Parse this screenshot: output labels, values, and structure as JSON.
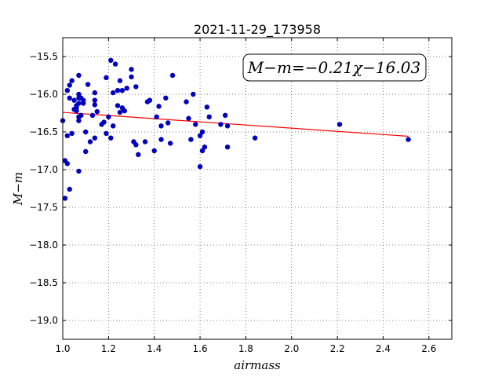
{
  "chart_data": {
    "type": "scatter",
    "title": "2021-11-29_173958",
    "xlabel": "airmass",
    "ylabel": "M−m",
    "xlim": [
      1.0,
      2.7
    ],
    "ylim": [
      -19.25,
      -15.25
    ],
    "y_inverted": true,
    "grid": true,
    "xticks": [
      1.0,
      1.2,
      1.4,
      1.6,
      1.8,
      2.0,
      2.2,
      2.4,
      2.6
    ],
    "xtick_labels": [
      "1.0",
      "1.2",
      "1.4",
      "1.6",
      "1.8",
      "2.0",
      "2.2",
      "2.4",
      "2.6"
    ],
    "yticks": [
      -15.5,
      -16.0,
      -16.5,
      -17.0,
      -17.5,
      -18.0,
      -18.5,
      -19.0
    ],
    "ytick_labels": [
      "−15.5",
      "−16.0",
      "−16.5",
      "−17.0",
      "−17.5",
      "−18.0",
      "−18.5",
      "−19.0"
    ],
    "annotation": "M−m=−0.21χ−16.03",
    "colors": {
      "points": "#0000bf",
      "fit": "#ff0000"
    },
    "fit_line": {
      "slope": -0.21,
      "intercept": -16.03,
      "x_range": [
        1.0,
        2.51
      ]
    },
    "series": [
      {
        "points": [
          [
            1.0,
            -16.35
          ],
          [
            1.01,
            -16.88
          ],
          [
            1.01,
            -17.38
          ],
          [
            1.02,
            -15.95
          ],
          [
            1.02,
            -16.92
          ],
          [
            1.02,
            -16.55
          ],
          [
            1.03,
            -17.26
          ],
          [
            1.03,
            -15.88
          ],
          [
            1.03,
            -16.05
          ],
          [
            1.04,
            -15.82
          ],
          [
            1.04,
            -16.52
          ],
          [
            1.05,
            -16.2
          ],
          [
            1.05,
            -16.08
          ],
          [
            1.06,
            -16.15
          ],
          [
            1.06,
            -16.22
          ],
          [
            1.06,
            -16.18
          ],
          [
            1.07,
            -15.75
          ],
          [
            1.07,
            -16.0
          ],
          [
            1.07,
            -16.05
          ],
          [
            1.07,
            -16.12
          ],
          [
            1.07,
            -16.3
          ],
          [
            1.07,
            -16.35
          ],
          [
            1.07,
            -17.02
          ],
          [
            1.08,
            -16.05
          ],
          [
            1.08,
            -16.28
          ],
          [
            1.09,
            -16.08
          ],
          [
            1.09,
            -16.12
          ],
          [
            1.1,
            -16.5
          ],
          [
            1.1,
            -16.76
          ],
          [
            1.11,
            -15.87
          ],
          [
            1.12,
            -16.63
          ],
          [
            1.13,
            -16.28
          ],
          [
            1.14,
            -15.98
          ],
          [
            1.14,
            -16.08
          ],
          [
            1.14,
            -16.14
          ],
          [
            1.14,
            -16.58
          ],
          [
            1.15,
            -16.23
          ],
          [
            1.17,
            -16.4
          ],
          [
            1.18,
            -16.37
          ],
          [
            1.19,
            -15.78
          ],
          [
            1.19,
            -16.52
          ],
          [
            1.2,
            -16.3
          ],
          [
            1.21,
            -15.55
          ],
          [
            1.21,
            -16.58
          ],
          [
            1.22,
            -16.42
          ],
          [
            1.23,
            -15.6
          ],
          [
            1.22,
            -15.98
          ],
          [
            1.24,
            -15.95
          ],
          [
            1.24,
            -16.15
          ],
          [
            1.25,
            -15.82
          ],
          [
            1.25,
            -16.24
          ],
          [
            1.26,
            -15.95
          ],
          [
            1.26,
            -16.18
          ],
          [
            1.27,
            -16.22
          ],
          [
            1.28,
            -15.92
          ],
          [
            1.3,
            -15.67
          ],
          [
            1.3,
            -15.77
          ],
          [
            1.31,
            -16.63
          ],
          [
            1.32,
            -15.9
          ],
          [
            1.32,
            -16.67
          ],
          [
            1.33,
            -16.8
          ],
          [
            1.36,
            -16.63
          ],
          [
            1.37,
            -16.1
          ],
          [
            1.38,
            -16.08
          ],
          [
            1.4,
            -16.75
          ],
          [
            1.41,
            -16.3
          ],
          [
            1.42,
            -16.16
          ],
          [
            1.43,
            -16.42
          ],
          [
            1.43,
            -16.6
          ],
          [
            1.45,
            -16.05
          ],
          [
            1.46,
            -16.38
          ],
          [
            1.47,
            -16.65
          ],
          [
            1.48,
            -15.75
          ],
          [
            1.54,
            -16.1
          ],
          [
            1.55,
            -16.32
          ],
          [
            1.56,
            -16.6
          ],
          [
            1.57,
            -16.0
          ],
          [
            1.58,
            -16.4
          ],
          [
            1.6,
            -16.96
          ],
          [
            1.6,
            -16.55
          ],
          [
            1.61,
            -16.5
          ],
          [
            1.61,
            -16.75
          ],
          [
            1.62,
            -16.7
          ],
          [
            1.63,
            -16.17
          ],
          [
            1.64,
            -16.3
          ],
          [
            1.69,
            -16.4
          ],
          [
            1.71,
            -16.28
          ],
          [
            1.72,
            -16.42
          ],
          [
            1.72,
            -16.7
          ],
          [
            1.84,
            -16.58
          ],
          [
            2.21,
            -16.4
          ],
          [
            2.51,
            -16.6
          ]
        ]
      }
    ]
  }
}
